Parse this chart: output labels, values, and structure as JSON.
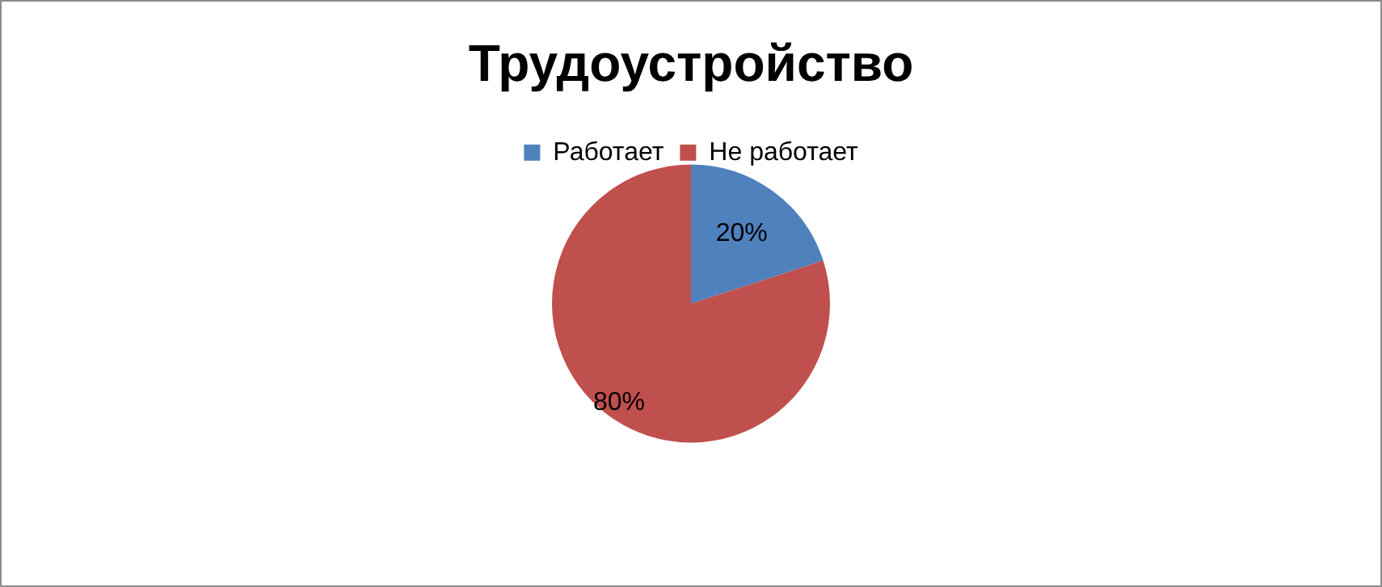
{
  "chart_data": {
    "type": "pie",
    "title": "Трудоустройство",
    "categories": [
      "Работает",
      "Не работает"
    ],
    "values": [
      20,
      80
    ],
    "colors": [
      "#4f81bd",
      "#c0504d"
    ],
    "legend": "top",
    "data_labels": true,
    "value_labels": [
      "20%",
      "80%"
    ]
  }
}
